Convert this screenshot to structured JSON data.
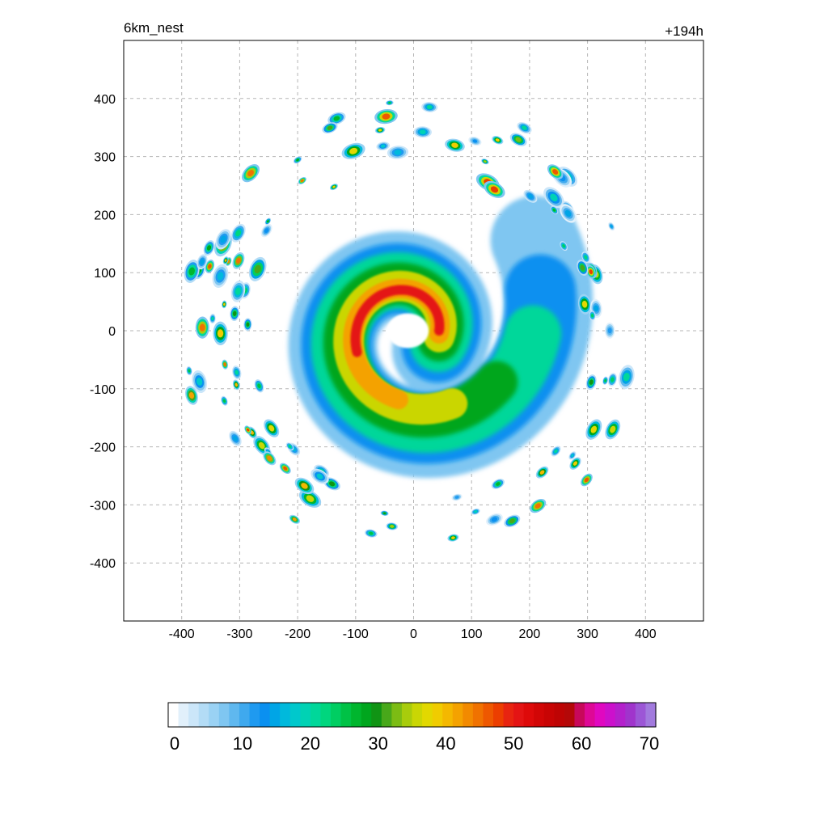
{
  "chart_data": {
    "type": "heatmap",
    "title_left": "6km_nest",
    "title_right": "+194h",
    "xlabel": "",
    "ylabel": "",
    "xlim": [
      -500,
      500
    ],
    "ylim": [
      -500,
      500
    ],
    "x_ticks": [
      -400,
      -300,
      -200,
      -100,
      0,
      100,
      200,
      300,
      400
    ],
    "y_ticks": [
      400,
      300,
      200,
      100,
      0,
      -100,
      -200,
      -300,
      -400
    ],
    "grid": true,
    "colorbar": {
      "min": 0,
      "max": 70,
      "ticks": [
        0,
        10,
        20,
        30,
        40,
        50,
        60,
        70
      ],
      "colors": [
        "#ffffff",
        "#e1f0fb",
        "#cbe6f9",
        "#b3dcf6",
        "#9ad2f4",
        "#7fc6f1",
        "#5fb8ef",
        "#3fa9ee",
        "#1f9af0",
        "#0a90f0",
        "#00a5e6",
        "#00b9dc",
        "#00c8cc",
        "#00d2b4",
        "#00d79a",
        "#00d67e",
        "#00ce62",
        "#00c246",
        "#00b62e",
        "#00a61e",
        "#109414",
        "#48a81a",
        "#7cbc14",
        "#a8cc0c",
        "#cad604",
        "#e2d800",
        "#f0cc00",
        "#f4b800",
        "#f4a200",
        "#f28a00",
        "#f07200",
        "#ee5800",
        "#ec3e00",
        "#e82410",
        "#e41414",
        "#de0a0a",
        "#d20606",
        "#c80404",
        "#be0404",
        "#b40808",
        "#c8085a",
        "#de0896",
        "#e008c0",
        "#cc10cc",
        "#b420cc",
        "#a034cc",
        "#9c56d6",
        "#a27ade"
      ]
    },
    "structures": {
      "eye_center": [
        -10,
        0
      ],
      "eye_radius_km": 40,
      "max_intensity": 55,
      "rainband_radius_km": [
        280,
        400
      ]
    }
  }
}
